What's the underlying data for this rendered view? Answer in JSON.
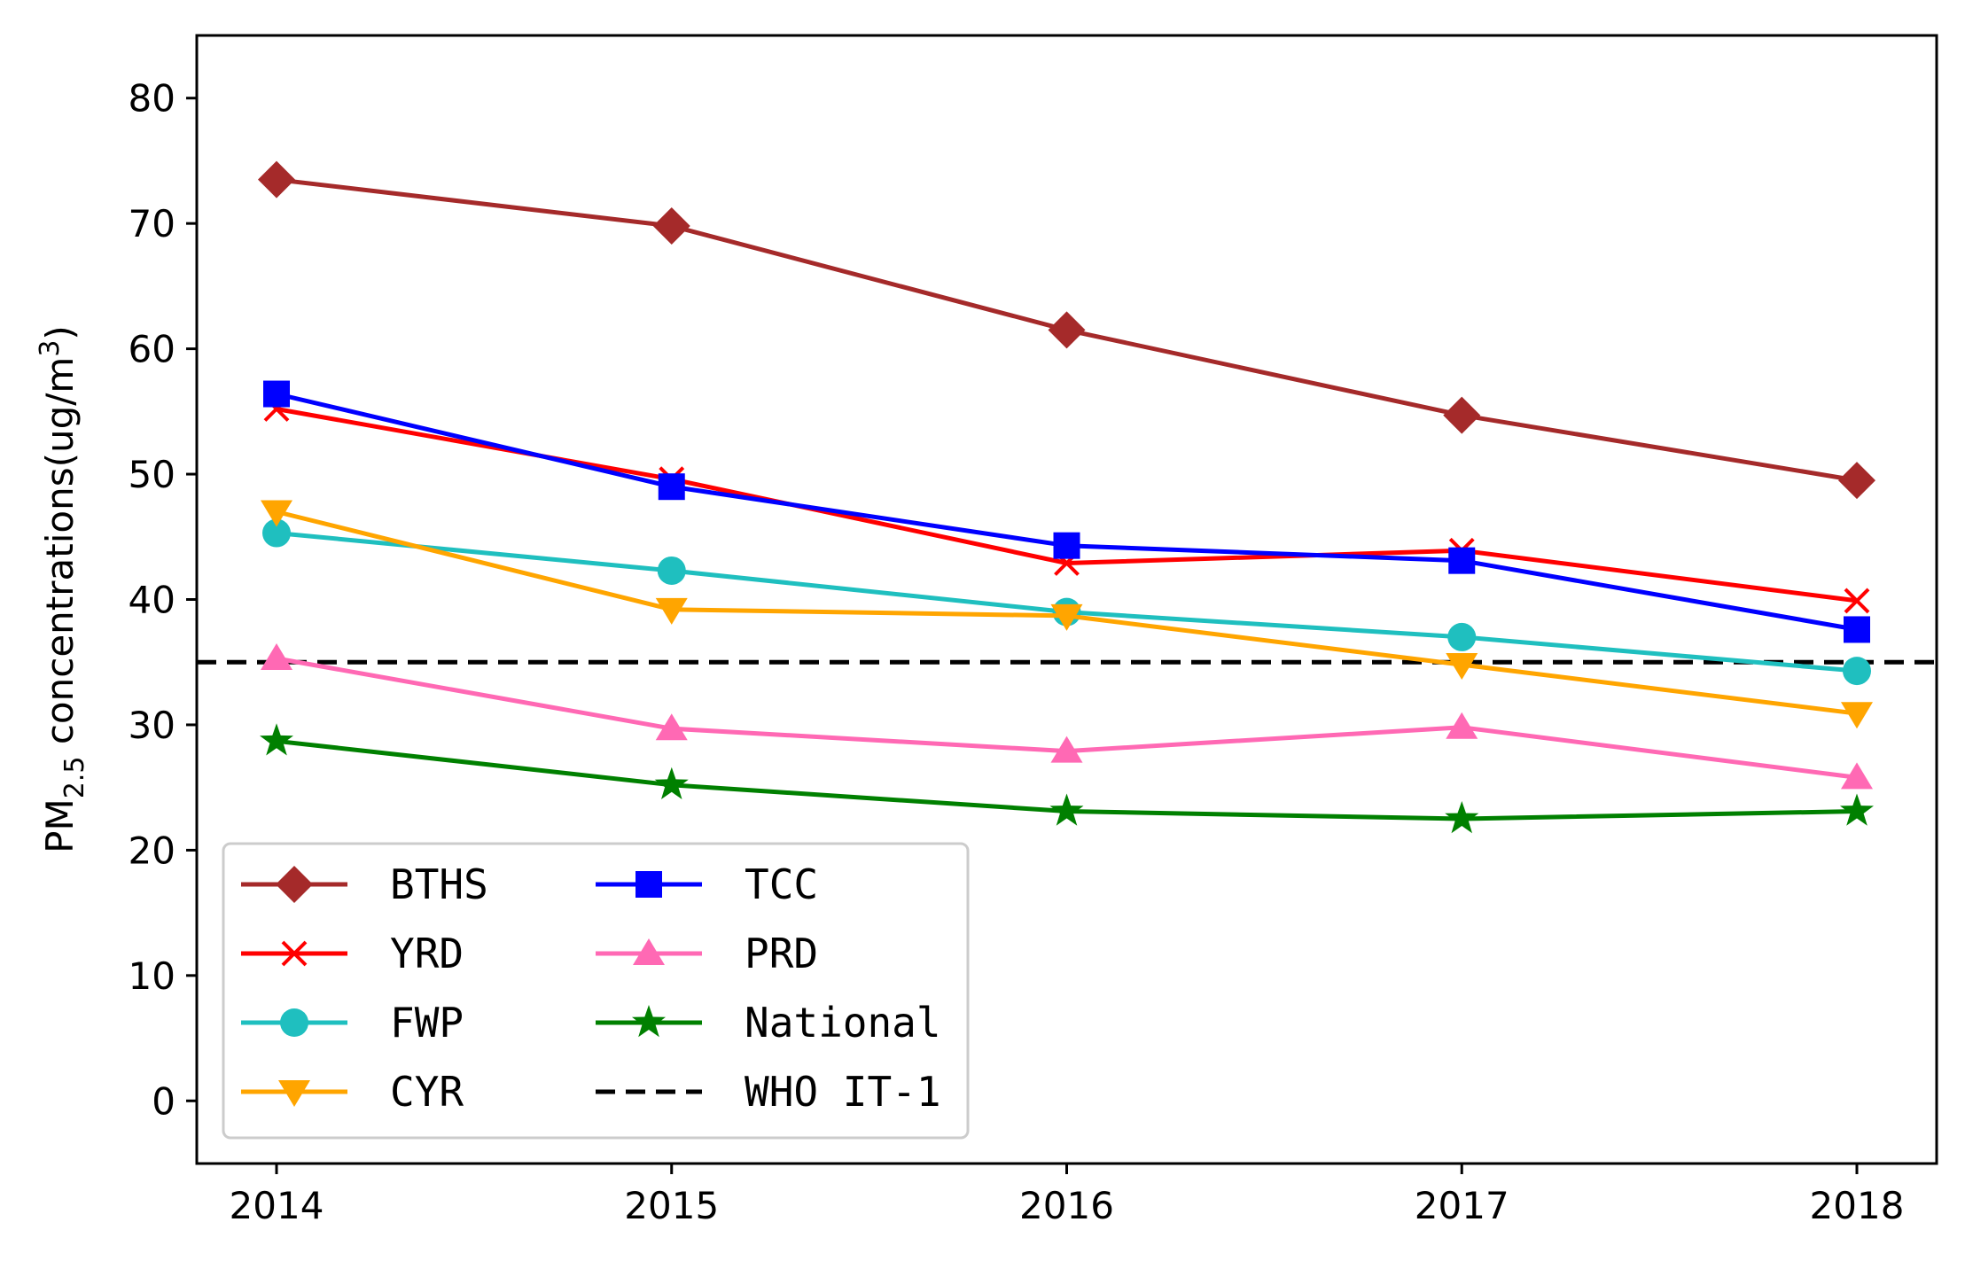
{
  "chart_data": {
    "type": "line",
    "x": [
      2014,
      2015,
      2016,
      2017,
      2018
    ],
    "x_tick_labels": [
      "2014",
      "2015",
      "2016",
      "2017",
      "2018"
    ],
    "ylim": [
      -5,
      85
    ],
    "y_ticks": [
      0,
      10,
      20,
      30,
      40,
      50,
      60,
      70,
      80
    ],
    "y_tick_labels": [
      "0",
      "10",
      "20",
      "30",
      "40",
      "50",
      "60",
      "70",
      "80"
    ],
    "ylabel_main": "PM",
    "ylabel_sub": "2.5",
    "ylabel_rest": " concentrations(ug/m",
    "ylabel_sup": "3",
    "ylabel_end": ")",
    "xlabel": "",
    "grid": false,
    "legend_position": "lower-left",
    "series": [
      {
        "name": "BTHS",
        "color": "#a52a2a",
        "marker": "diamond",
        "values": [
          73.5,
          69.8,
          61.5,
          54.7,
          49.5
        ]
      },
      {
        "name": "YRD",
        "color": "#ff0000",
        "marker": "x",
        "values": [
          55.2,
          49.6,
          42.9,
          43.9,
          39.9
        ]
      },
      {
        "name": "FWP",
        "color": "#1fbfbf",
        "marker": "circle",
        "values": [
          45.3,
          42.3,
          39.0,
          37.0,
          34.3
        ]
      },
      {
        "name": "CYR",
        "color": "#ffa500",
        "marker": "triangle-down",
        "values": [
          47.0,
          39.2,
          38.7,
          34.8,
          30.9
        ]
      },
      {
        "name": "TCC",
        "color": "#0000ff",
        "marker": "square",
        "values": [
          56.4,
          49.0,
          44.3,
          43.1,
          37.6
        ]
      },
      {
        "name": "PRD",
        "color": "#ff69b4",
        "marker": "triangle-up",
        "values": [
          35.3,
          29.7,
          27.9,
          29.8,
          25.8
        ]
      },
      {
        "name": "National",
        "color": "#008000",
        "marker": "star",
        "values": [
          28.7,
          25.2,
          23.1,
          22.5,
          23.1
        ]
      }
    ],
    "reference_lines": [
      {
        "name": "WHO IT-1",
        "color": "#000000",
        "style": "dashed",
        "value": 35
      }
    ]
  }
}
